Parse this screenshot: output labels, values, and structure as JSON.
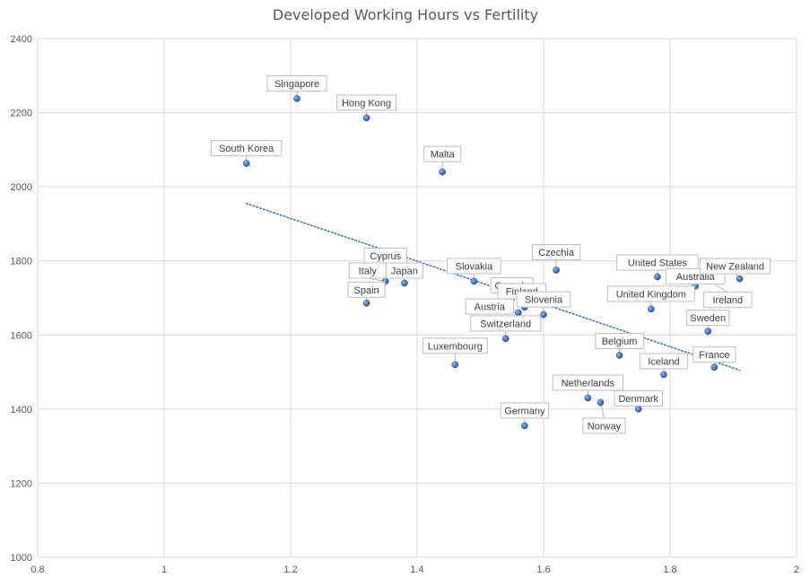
{
  "chart_data": {
    "type": "scatter",
    "title": "Developed Working Hours vs Fertility",
    "xlabel": "",
    "ylabel": "",
    "xlim": [
      0.8,
      2
    ],
    "ylim": [
      1000,
      2400
    ],
    "xticks": [
      "0.8",
      "1",
      "1.2",
      "1.4",
      "1.6",
      "1.8",
      "2"
    ],
    "yticks": [
      "1000",
      "1200",
      "1400",
      "1600",
      "1800",
      "2000",
      "2200",
      "2400"
    ],
    "grid": true,
    "legend": "none",
    "marker_color": "#4472C4",
    "trendline": {
      "type": "linear",
      "style": "dotted",
      "color": "#4472C4",
      "x_start": 1.13,
      "y_start": 1955,
      "x_end": 1.91,
      "y_end": 1505
    },
    "points": [
      {
        "label": "Singapore",
        "x": 1.21,
        "y": 2238
      },
      {
        "label": "Hong Kong",
        "x": 1.32,
        "y": 2186
      },
      {
        "label": "South Korea",
        "x": 1.13,
        "y": 2063
      },
      {
        "label": "Malta",
        "x": 1.44,
        "y": 2040
      },
      {
        "label": "Cyprus",
        "x": 1.35,
        "y": 1780
      },
      {
        "label": "Italy",
        "x": 1.35,
        "y": 1745
      },
      {
        "label": "Japan",
        "x": 1.38,
        "y": 1740
      },
      {
        "label": "Spain",
        "x": 1.32,
        "y": 1686
      },
      {
        "label": "Slovakia",
        "x": 1.49,
        "y": 1745
      },
      {
        "label": "Czechia",
        "x": 1.62,
        "y": 1775
      },
      {
        "label": "Canada",
        "x": 1.55,
        "y": 1700
      },
      {
        "label": "Finland",
        "x": 1.57,
        "y": 1675
      },
      {
        "label": "Slovenia",
        "x": 1.6,
        "y": 1655
      },
      {
        "label": "Austria",
        "x": 1.56,
        "y": 1660
      },
      {
        "label": "Switzerland",
        "x": 1.54,
        "y": 1590
      },
      {
        "label": "Luxembourg",
        "x": 1.46,
        "y": 1520
      },
      {
        "label": "United States",
        "x": 1.78,
        "y": 1757
      },
      {
        "label": "Australia",
        "x": 1.84,
        "y": 1732
      },
      {
        "label": "New Zealand",
        "x": 1.91,
        "y": 1752
      },
      {
        "label": "Ireland",
        "x": 1.86,
        "y": 1748
      },
      {
        "label": "United Kingdom",
        "x": 1.77,
        "y": 1670
      },
      {
        "label": "Sweden",
        "x": 1.86,
        "y": 1610
      },
      {
        "label": "Belgium",
        "x": 1.72,
        "y": 1545
      },
      {
        "label": "France",
        "x": 1.87,
        "y": 1513
      },
      {
        "label": "Iceland",
        "x": 1.79,
        "y": 1493
      },
      {
        "label": "Netherlands",
        "x": 1.67,
        "y": 1430
      },
      {
        "label": "Denmark",
        "x": 1.75,
        "y": 1400
      },
      {
        "label": "Norway",
        "x": 1.69,
        "y": 1418
      },
      {
        "label": "Germany",
        "x": 1.57,
        "y": 1355
      }
    ]
  }
}
